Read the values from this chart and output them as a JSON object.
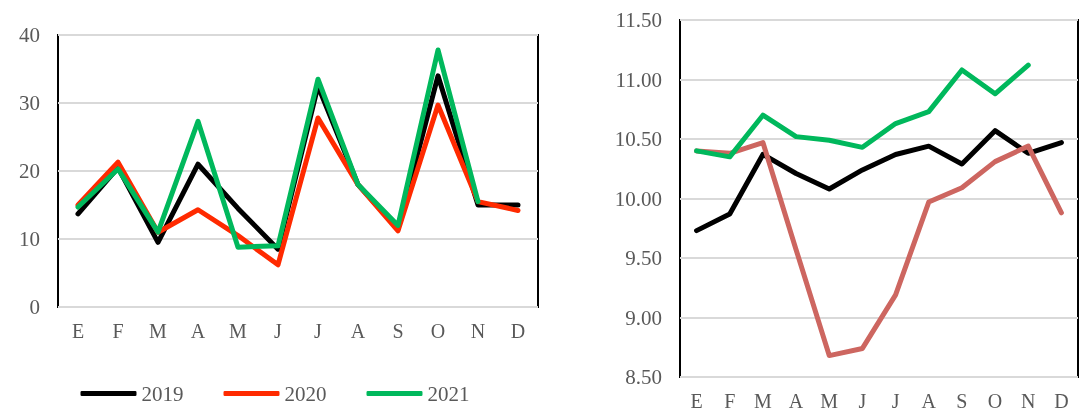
{
  "chart_data": [
    {
      "type": "line",
      "categories": [
        "E",
        "F",
        "M",
        "A",
        "M",
        "J",
        "J",
        "A",
        "S",
        "O",
        "N",
        "D"
      ],
      "series": [
        {
          "name": "2019",
          "color": "#000000",
          "values": [
            13.7,
            20.5,
            9.5,
            21,
            14.5,
            8.5,
            32.5,
            18,
            11.5,
            34,
            15,
            15
          ]
        },
        {
          "name": "2020",
          "color": "#ff2a00",
          "values": [
            15,
            21.3,
            11,
            14.3,
            10.5,
            6.2,
            27.8,
            18,
            11.2,
            29.7,
            15.5,
            14.2
          ]
        },
        {
          "name": "2021",
          "color": "#00b85c",
          "values": [
            14.7,
            20.3,
            11,
            27.3,
            8.8,
            9,
            33.5,
            18,
            12,
            37.8,
            15.5,
            null
          ]
        }
      ],
      "ylim": [
        0,
        40
      ],
      "yticks": [
        0,
        10,
        20,
        30,
        40
      ],
      "grid": "y",
      "legend": "bottom",
      "marker": "none",
      "line_style": "solid"
    },
    {
      "type": "line",
      "categories": [
        "E",
        "F",
        "M",
        "A",
        "M",
        "J",
        "J",
        "A",
        "S",
        "O",
        "N",
        "D"
      ],
      "series": [
        {
          "color": "#000000",
          "values": [
            9.73,
            9.87,
            10.37,
            10.21,
            10.08,
            10.24,
            10.37,
            10.44,
            10.29,
            10.57,
            10.38,
            10.47
          ]
        },
        {
          "color": "#cd6660",
          "values": [
            10.4,
            10.38,
            10.47,
            9.57,
            8.68,
            8.74,
            9.19,
            9.97,
            10.09,
            10.31,
            10.44,
            9.88
          ]
        },
        {
          "color": "#00b85c",
          "values": [
            10.4,
            10.35,
            10.7,
            10.52,
            10.49,
            10.43,
            10.63,
            10.73,
            11.08,
            10.88,
            11.12,
            null
          ]
        }
      ],
      "ylim": [
        8.5,
        11.5
      ],
      "yticks": [
        {
          "value": 8.5,
          "label": "8.50"
        },
        {
          "value": 9,
          "label": "9.00"
        },
        {
          "value": 9.5,
          "label": "9.50"
        },
        {
          "value": 10,
          "label": "10.00"
        },
        {
          "value": 10.5,
          "label": "10.50"
        },
        {
          "value": 11,
          "label": "11.00"
        },
        {
          "value": 11.5,
          "label": "11.50"
        }
      ],
      "grid": "y",
      "legend": false,
      "marker": "none",
      "line_style": "solid"
    }
  ]
}
